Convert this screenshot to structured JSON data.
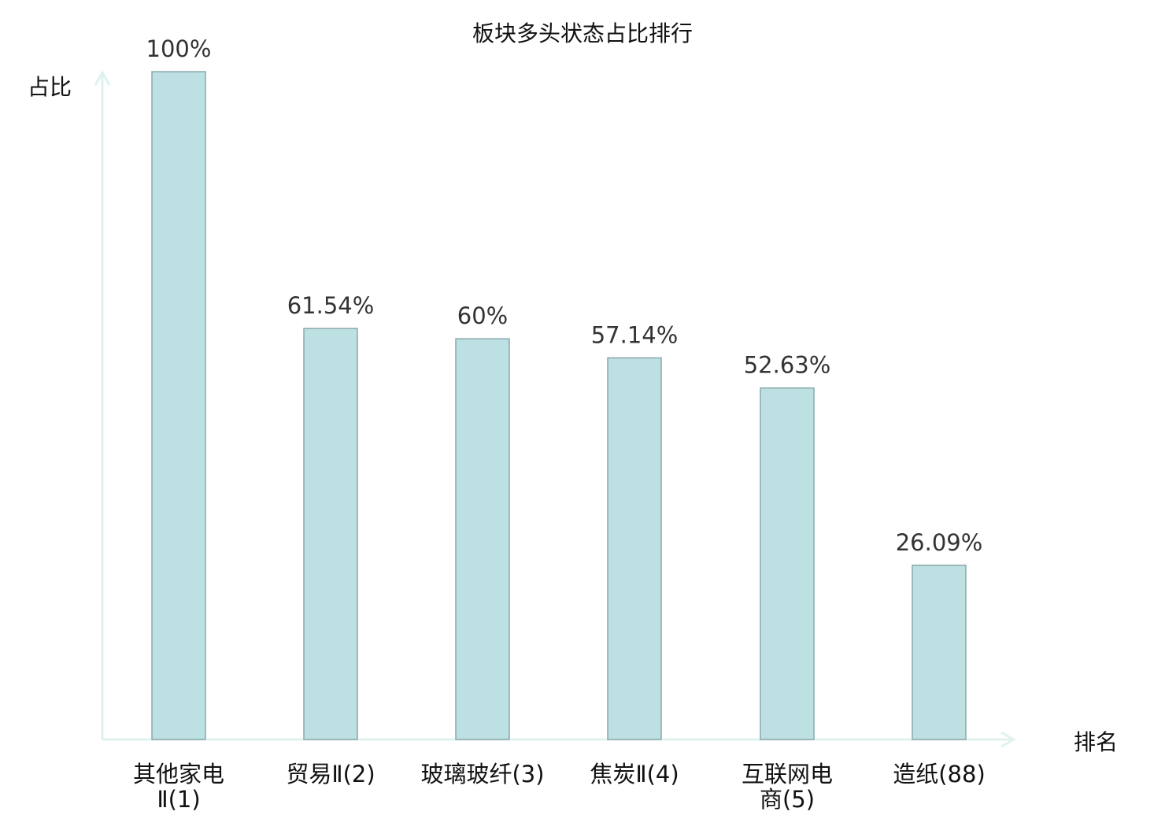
{
  "chart_data": {
    "type": "bar",
    "title": "板块多头状态占比排行",
    "ylabel": "占比",
    "xlabel": "排名",
    "ylim": [
      0,
      100
    ],
    "grid": false,
    "categories": [
      "其他家电Ⅱ(1)",
      "贸易Ⅱ(2)",
      "玻璃玻纤(3)",
      "焦炭Ⅱ(4)",
      "互联网电商(5)",
      "造纸(88)"
    ],
    "category_lines": [
      [
        "其他家电",
        "Ⅱ(1)"
      ],
      [
        "贸易Ⅱ(2)"
      ],
      [
        "玻璃玻纤(3)"
      ],
      [
        "焦炭Ⅱ(4)"
      ],
      [
        "互联网电",
        "商(5)"
      ],
      [
        "造纸(88)"
      ]
    ],
    "values": [
      100,
      61.54,
      60,
      57.14,
      52.63,
      26.09
    ],
    "data_labels": [
      "100%",
      "61.54%",
      "60%",
      "57.14%",
      "52.63%",
      "26.09%"
    ],
    "highlight_index": 5,
    "colors": {
      "bar_fill": "#bde0e3",
      "bar_stroke": "#8aa8aa",
      "axis": "#dff2ef",
      "highlight_label": "#e8141c"
    }
  }
}
